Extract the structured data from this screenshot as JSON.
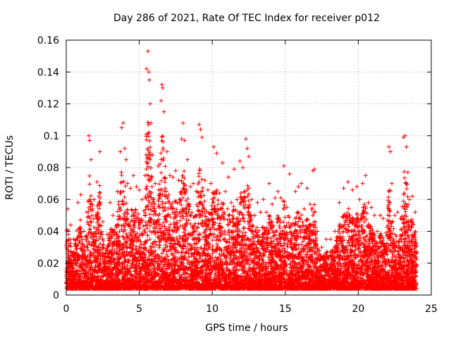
{
  "chart_data": {
    "type": "scatter",
    "title": "Day 286 of 2021, Rate Of TEC Index for receiver p012",
    "xlabel": "GPS time / hours",
    "ylabel": "ROTI / TECUs",
    "xlim": [
      0,
      25
    ],
    "ylim": [
      0,
      0.16
    ],
    "x_ticks": [
      "0",
      "5",
      "10",
      "15",
      "20",
      "25"
    ],
    "y_ticks": [
      "0",
      "0.02",
      "0.04",
      "0.06",
      "0.08",
      "0.1",
      "0.12",
      "0.14",
      "0.16"
    ],
    "grid": true,
    "marker": "plus",
    "color": "#ff0000",
    "series": [
      {
        "x": [
          0.1,
          0.3,
          0.5,
          0.8,
          1.0,
          1.2,
          1.4,
          1.55,
          1.6,
          1.7,
          1.9,
          2.1,
          2.3,
          2.5,
          2.8,
          3.0,
          3.2,
          3.5,
          3.7,
          3.8,
          3.9,
          4.0,
          4.1,
          4.2,
          4.4,
          4.6,
          4.8,
          5.0,
          5.2,
          5.4,
          5.5,
          5.6,
          5.65,
          5.7,
          5.75,
          5.8,
          5.9,
          6.1,
          6.3,
          6.5,
          6.55,
          6.6,
          6.7,
          6.9,
          7.1,
          7.3,
          7.5,
          7.7,
          7.9,
          8.0,
          8.1,
          8.3,
          8.5,
          8.7,
          8.9,
          9.1,
          9.2,
          9.3,
          9.5,
          9.7,
          9.9,
          10.1,
          10.3,
          10.5,
          10.7,
          10.9,
          11.1,
          11.3,
          11.5,
          11.7,
          11.9,
          12.1,
          12.3,
          12.4,
          12.5,
          12.7,
          12.9,
          13.1,
          13.3,
          13.5,
          13.7,
          13.9,
          14.1,
          14.3,
          14.5,
          14.7,
          14.9,
          15.1,
          15.3,
          15.5,
          15.7,
          15.9,
          16.1,
          16.3,
          16.5,
          16.7,
          16.9,
          17.0,
          17.2,
          17.5,
          17.8,
          18.1,
          18.4,
          18.7,
          19.0,
          19.3,
          19.6,
          19.9,
          20.1,
          20.3,
          20.5,
          20.7,
          20.9,
          21.1,
          21.3,
          21.5,
          21.7,
          21.9,
          22.1,
          22.2,
          22.3,
          22.5,
          22.7,
          22.9,
          23.1,
          23.2,
          23.3,
          23.4,
          23.5,
          23.7,
          23.9
        ],
        "y": [
          0.054,
          0.044,
          0.035,
          0.058,
          0.063,
          0.04,
          0.052,
          0.1,
          0.097,
          0.085,
          0.06,
          0.071,
          0.09,
          0.046,
          0.038,
          0.058,
          0.05,
          0.065,
          0.09,
          0.105,
          0.108,
          0.092,
          0.085,
          0.07,
          0.067,
          0.075,
          0.068,
          0.066,
          0.06,
          0.075,
          0.142,
          0.153,
          0.14,
          0.135,
          0.12,
          0.108,
          0.088,
          0.07,
          0.081,
          0.122,
          0.132,
          0.13,
          0.115,
          0.09,
          0.075,
          0.074,
          0.078,
          0.072,
          0.098,
          0.108,
          0.097,
          0.085,
          0.068,
          0.07,
          0.065,
          0.107,
          0.104,
          0.099,
          0.072,
          0.066,
          0.07,
          0.093,
          0.089,
          0.064,
          0.083,
          0.065,
          0.074,
          0.058,
          0.079,
          0.06,
          0.084,
          0.08,
          0.098,
          0.092,
          0.087,
          0.06,
          0.05,
          0.058,
          0.052,
          0.06,
          0.052,
          0.07,
          0.057,
          0.061,
          0.065,
          0.061,
          0.081,
          0.055,
          0.076,
          0.045,
          0.065,
          0.068,
          0.07,
          0.054,
          0.067,
          0.057,
          0.078,
          0.079,
          0.04,
          0.03,
          0.035,
          0.035,
          0.04,
          0.058,
          0.067,
          0.071,
          0.066,
          0.068,
          0.06,
          0.07,
          0.075,
          0.058,
          0.055,
          0.05,
          0.04,
          0.05,
          0.048,
          0.039,
          0.093,
          0.09,
          0.07,
          0.05,
          0.052,
          0.048,
          0.099,
          0.1,
          0.093,
          0.077,
          0.06,
          0.062,
          0.052
        ]
      }
    ]
  }
}
